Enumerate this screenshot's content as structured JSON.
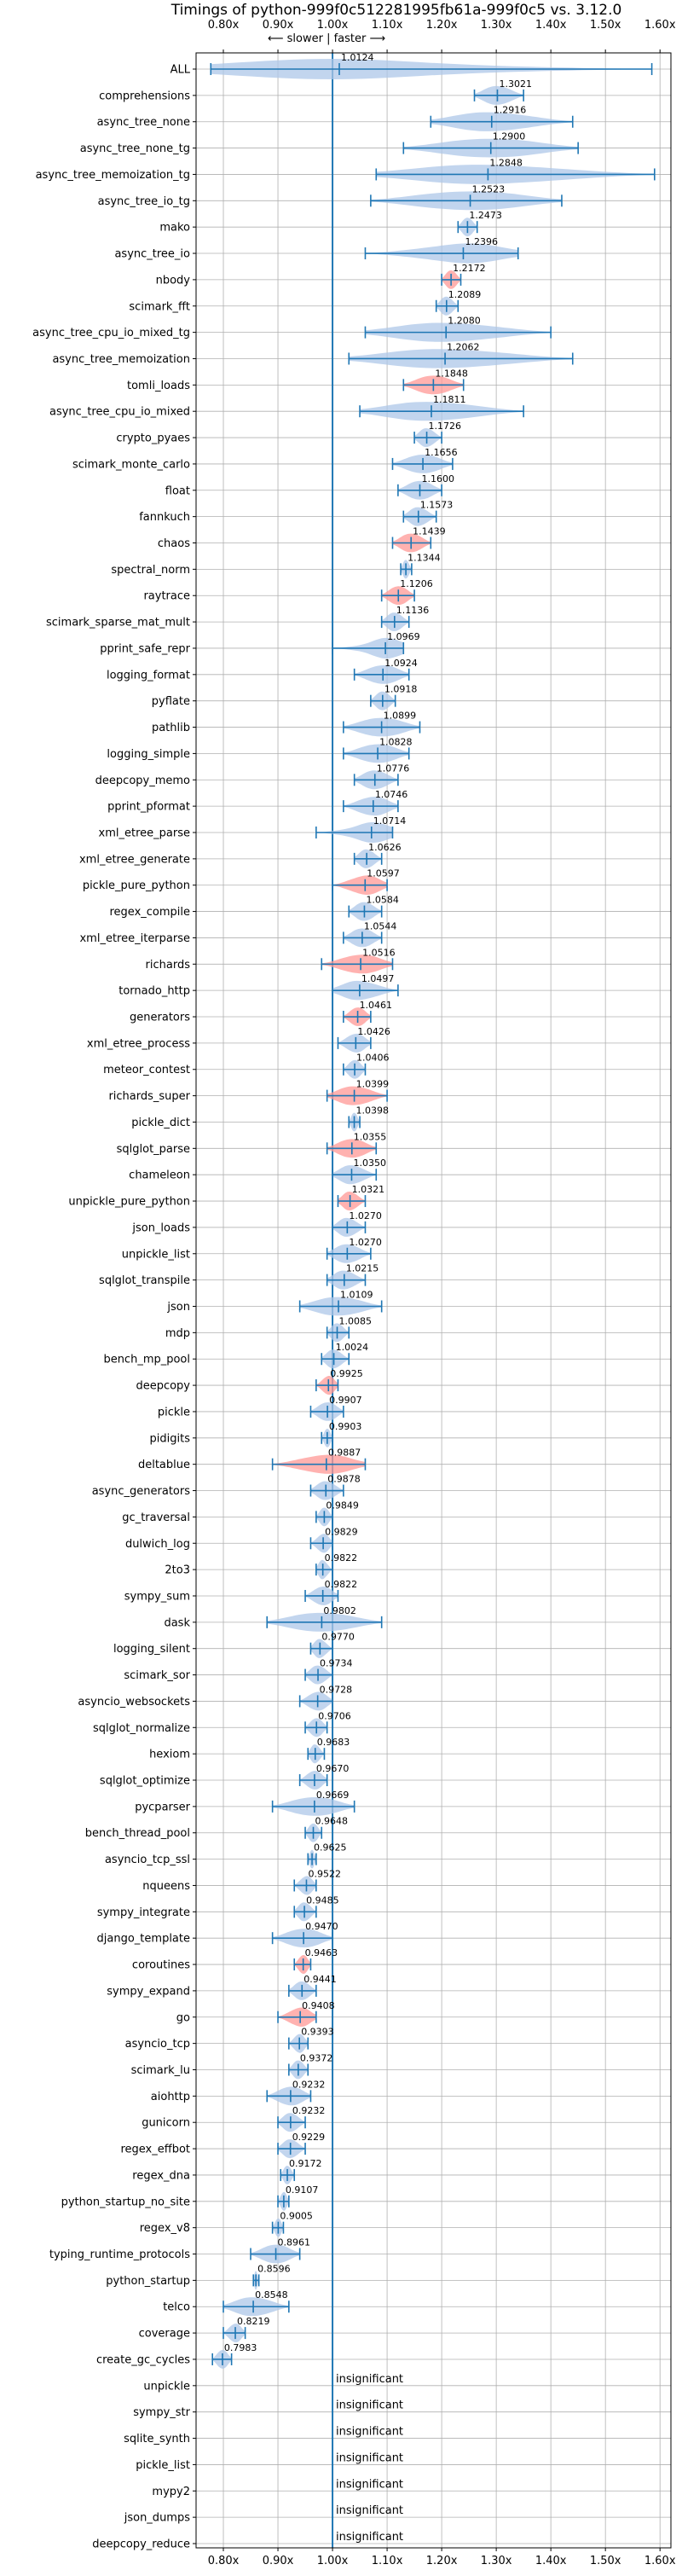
{
  "chart_data": {
    "type": "violin",
    "title": "Timings of python-999f0c512281995fb61a-999f0c5 vs. 3.12.0",
    "direction_label": "⟵ slower | faster ⟶",
    "xlim": [
      0.75,
      1.62
    ],
    "xticks": [
      "0.80x",
      "0.90x",
      "1.00x",
      "1.10x",
      "1.20x",
      "1.30x",
      "1.40x",
      "1.50x",
      "1.60x"
    ],
    "xtick_values": [
      0.8,
      0.9,
      1.0,
      1.1,
      1.2,
      1.3,
      1.4,
      1.5,
      1.6
    ],
    "reference_line": 1.0,
    "insignificant_label": "insignificant",
    "colors": {
      "normal": "#aec7e8",
      "highlight": "#ff9896",
      "line": "#1f77b4",
      "grid": "#b0b0b0"
    },
    "benchmarks": [
      {
        "name": "ALL",
        "value": 1.0124,
        "label": "1.0124",
        "min": 0.777,
        "max": 1.585,
        "color": "normal"
      },
      {
        "name": "comprehensions",
        "value": 1.3021,
        "label": "1.3021",
        "min": 1.26,
        "max": 1.35,
        "color": "normal"
      },
      {
        "name": "async_tree_none",
        "value": 1.2916,
        "label": "1.2916",
        "min": 1.18,
        "max": 1.44,
        "color": "normal"
      },
      {
        "name": "async_tree_none_tg",
        "value": 1.29,
        "label": "1.2900",
        "min": 1.13,
        "max": 1.45,
        "color": "normal"
      },
      {
        "name": "async_tree_memoization_tg",
        "value": 1.2848,
        "label": "1.2848",
        "min": 1.08,
        "max": 1.59,
        "color": "normal"
      },
      {
        "name": "async_tree_io_tg",
        "value": 1.2523,
        "label": "1.2523",
        "min": 1.07,
        "max": 1.42,
        "color": "normal"
      },
      {
        "name": "mako",
        "value": 1.2473,
        "label": "1.2473",
        "min": 1.23,
        "max": 1.265,
        "color": "normal"
      },
      {
        "name": "async_tree_io",
        "value": 1.2396,
        "label": "1.2396",
        "min": 1.06,
        "max": 1.34,
        "color": "normal"
      },
      {
        "name": "nbody",
        "value": 1.2172,
        "label": "1.2172",
        "min": 1.2,
        "max": 1.235,
        "color": "highlight"
      },
      {
        "name": "scimark_fft",
        "value": 1.2089,
        "label": "1.2089",
        "min": 1.19,
        "max": 1.23,
        "color": "normal"
      },
      {
        "name": "async_tree_cpu_io_mixed_tg",
        "value": 1.208,
        "label": "1.2080",
        "min": 1.06,
        "max": 1.4,
        "color": "normal"
      },
      {
        "name": "async_tree_memoization",
        "value": 1.2062,
        "label": "1.2062",
        "min": 1.03,
        "max": 1.44,
        "color": "normal"
      },
      {
        "name": "tomli_loads",
        "value": 1.1848,
        "label": "1.1848",
        "min": 1.13,
        "max": 1.24,
        "color": "highlight"
      },
      {
        "name": "async_tree_cpu_io_mixed",
        "value": 1.1811,
        "label": "1.1811",
        "min": 1.05,
        "max": 1.35,
        "color": "normal"
      },
      {
        "name": "crypto_pyaes",
        "value": 1.1726,
        "label": "1.1726",
        "min": 1.15,
        "max": 1.2,
        "color": "normal"
      },
      {
        "name": "scimark_monte_carlo",
        "value": 1.1656,
        "label": "1.1656",
        "min": 1.11,
        "max": 1.22,
        "color": "normal"
      },
      {
        "name": "float",
        "value": 1.16,
        "label": "1.1600",
        "min": 1.12,
        "max": 1.2,
        "color": "normal"
      },
      {
        "name": "fannkuch",
        "value": 1.1573,
        "label": "1.1573",
        "min": 1.13,
        "max": 1.19,
        "color": "normal"
      },
      {
        "name": "chaos",
        "value": 1.1439,
        "label": "1.1439",
        "min": 1.11,
        "max": 1.18,
        "color": "highlight"
      },
      {
        "name": "spectral_norm",
        "value": 1.1344,
        "label": "1.1344",
        "min": 1.125,
        "max": 1.145,
        "color": "normal"
      },
      {
        "name": "raytrace",
        "value": 1.1206,
        "label": "1.1206",
        "min": 1.09,
        "max": 1.15,
        "color": "highlight"
      },
      {
        "name": "scimark_sparse_mat_mult",
        "value": 1.1136,
        "label": "1.1136",
        "min": 1.09,
        "max": 1.14,
        "color": "normal"
      },
      {
        "name": "pprint_safe_repr",
        "value": 1.0969,
        "label": "1.0969",
        "min": 1.0,
        "max": 1.13,
        "color": "normal"
      },
      {
        "name": "logging_format",
        "value": 1.0924,
        "label": "1.0924",
        "min": 1.04,
        "max": 1.14,
        "color": "normal"
      },
      {
        "name": "pyflate",
        "value": 1.0918,
        "label": "1.0918",
        "min": 1.07,
        "max": 1.115,
        "color": "normal"
      },
      {
        "name": "pathlib",
        "value": 1.0899,
        "label": "1.0899",
        "min": 1.02,
        "max": 1.16,
        "color": "normal"
      },
      {
        "name": "logging_simple",
        "value": 1.0828,
        "label": "1.0828",
        "min": 1.02,
        "max": 1.14,
        "color": "normal"
      },
      {
        "name": "deepcopy_memo",
        "value": 1.0776,
        "label": "1.0776",
        "min": 1.04,
        "max": 1.12,
        "color": "normal"
      },
      {
        "name": "pprint_pformat",
        "value": 1.0746,
        "label": "1.0746",
        "min": 1.02,
        "max": 1.12,
        "color": "normal"
      },
      {
        "name": "xml_etree_parse",
        "value": 1.0714,
        "label": "1.0714",
        "min": 0.97,
        "max": 1.11,
        "color": "normal"
      },
      {
        "name": "xml_etree_generate",
        "value": 1.0626,
        "label": "1.0626",
        "min": 1.04,
        "max": 1.09,
        "color": "normal"
      },
      {
        "name": "pickle_pure_python",
        "value": 1.0597,
        "label": "1.0597",
        "min": 1.0,
        "max": 1.1,
        "color": "highlight"
      },
      {
        "name": "regex_compile",
        "value": 1.0584,
        "label": "1.0584",
        "min": 1.03,
        "max": 1.09,
        "color": "normal"
      },
      {
        "name": "xml_etree_iterparse",
        "value": 1.0544,
        "label": "1.0544",
        "min": 1.02,
        "max": 1.09,
        "color": "normal"
      },
      {
        "name": "richards",
        "value": 1.0516,
        "label": "1.0516",
        "min": 0.98,
        "max": 1.11,
        "color": "highlight"
      },
      {
        "name": "tornado_http",
        "value": 1.0497,
        "label": "1.0497",
        "min": 1.0,
        "max": 1.12,
        "color": "normal"
      },
      {
        "name": "generators",
        "value": 1.0461,
        "label": "1.0461",
        "min": 1.02,
        "max": 1.07,
        "color": "highlight"
      },
      {
        "name": "xml_etree_process",
        "value": 1.0426,
        "label": "1.0426",
        "min": 1.01,
        "max": 1.07,
        "color": "normal"
      },
      {
        "name": "meteor_contest",
        "value": 1.0406,
        "label": "1.0406",
        "min": 1.02,
        "max": 1.06,
        "color": "normal"
      },
      {
        "name": "richards_super",
        "value": 1.0399,
        "label": "1.0399",
        "min": 0.99,
        "max": 1.1,
        "color": "highlight"
      },
      {
        "name": "pickle_dict",
        "value": 1.0398,
        "label": "1.0398",
        "min": 1.03,
        "max": 1.05,
        "color": "normal"
      },
      {
        "name": "sqlglot_parse",
        "value": 1.0355,
        "label": "1.0355",
        "min": 0.99,
        "max": 1.08,
        "color": "highlight"
      },
      {
        "name": "chameleon",
        "value": 1.035,
        "label": "1.0350",
        "min": 1.0,
        "max": 1.08,
        "color": "normal"
      },
      {
        "name": "unpickle_pure_python",
        "value": 1.0321,
        "label": "1.0321",
        "min": 1.01,
        "max": 1.06,
        "color": "highlight"
      },
      {
        "name": "json_loads",
        "value": 1.027,
        "label": "1.0270",
        "min": 1.0,
        "max": 1.06,
        "color": "normal"
      },
      {
        "name": "unpickle_list",
        "value": 1.027,
        "label": "1.0270",
        "min": 0.99,
        "max": 1.07,
        "color": "normal"
      },
      {
        "name": "sqlglot_transpile",
        "value": 1.0215,
        "label": "1.0215",
        "min": 0.99,
        "max": 1.06,
        "color": "normal"
      },
      {
        "name": "json",
        "value": 1.0109,
        "label": "1.0109",
        "min": 0.94,
        "max": 1.09,
        "color": "normal"
      },
      {
        "name": "mdp",
        "value": 1.0085,
        "label": "1.0085",
        "min": 0.99,
        "max": 1.03,
        "color": "normal"
      },
      {
        "name": "bench_mp_pool",
        "value": 1.0024,
        "label": "1.0024",
        "min": 0.98,
        "max": 1.03,
        "color": "normal"
      },
      {
        "name": "deepcopy",
        "value": 0.9925,
        "label": "0.9925",
        "min": 0.97,
        "max": 1.01,
        "color": "highlight"
      },
      {
        "name": "pickle",
        "value": 0.9907,
        "label": "0.9907",
        "min": 0.96,
        "max": 1.02,
        "color": "normal"
      },
      {
        "name": "pidigits",
        "value": 0.9903,
        "label": "0.9903",
        "min": 0.98,
        "max": 1.0,
        "color": "normal"
      },
      {
        "name": "deltablue",
        "value": 0.9887,
        "label": "0.9887",
        "min": 0.89,
        "max": 1.06,
        "color": "highlight"
      },
      {
        "name": "async_generators",
        "value": 0.9878,
        "label": "0.9878",
        "min": 0.96,
        "max": 1.02,
        "color": "normal"
      },
      {
        "name": "gc_traversal",
        "value": 0.9849,
        "label": "0.9849",
        "min": 0.97,
        "max": 1.0,
        "color": "normal"
      },
      {
        "name": "dulwich_log",
        "value": 0.9829,
        "label": "0.9829",
        "min": 0.96,
        "max": 1.0,
        "color": "normal"
      },
      {
        "name": "2to3",
        "value": 0.9822,
        "label": "0.9822",
        "min": 0.97,
        "max": 1.0,
        "color": "normal"
      },
      {
        "name": "sympy_sum",
        "value": 0.9822,
        "label": "0.9822",
        "min": 0.95,
        "max": 1.01,
        "color": "normal"
      },
      {
        "name": "dask",
        "value": 0.9802,
        "label": "0.9802",
        "min": 0.88,
        "max": 1.09,
        "color": "normal"
      },
      {
        "name": "logging_silent",
        "value": 0.977,
        "label": "0.9770",
        "min": 0.96,
        "max": 1.0,
        "color": "normal"
      },
      {
        "name": "scimark_sor",
        "value": 0.9734,
        "label": "0.9734",
        "min": 0.95,
        "max": 1.0,
        "color": "normal"
      },
      {
        "name": "asyncio_websockets",
        "value": 0.9728,
        "label": "0.9728",
        "min": 0.94,
        "max": 1.0,
        "color": "normal"
      },
      {
        "name": "sqlglot_normalize",
        "value": 0.9706,
        "label": "0.9706",
        "min": 0.95,
        "max": 0.99,
        "color": "normal"
      },
      {
        "name": "hexiom",
        "value": 0.9683,
        "label": "0.9683",
        "min": 0.955,
        "max": 0.985,
        "color": "normal"
      },
      {
        "name": "sqlglot_optimize",
        "value": 0.967,
        "label": "0.9670",
        "min": 0.94,
        "max": 0.99,
        "color": "normal"
      },
      {
        "name": "pycparser",
        "value": 0.9669,
        "label": "0.9669",
        "min": 0.89,
        "max": 1.04,
        "color": "normal"
      },
      {
        "name": "bench_thread_pool",
        "value": 0.9648,
        "label": "0.9648",
        "min": 0.95,
        "max": 0.98,
        "color": "normal"
      },
      {
        "name": "asyncio_tcp_ssl",
        "value": 0.9625,
        "label": "0.9625",
        "min": 0.955,
        "max": 0.97,
        "color": "normal"
      },
      {
        "name": "nqueens",
        "value": 0.9522,
        "label": "0.9522",
        "min": 0.93,
        "max": 0.97,
        "color": "normal"
      },
      {
        "name": "sympy_integrate",
        "value": 0.9485,
        "label": "0.9485",
        "min": 0.93,
        "max": 0.97,
        "color": "normal"
      },
      {
        "name": "django_template",
        "value": 0.947,
        "label": "0.9470",
        "min": 0.89,
        "max": 1.0,
        "color": "normal"
      },
      {
        "name": "coroutines",
        "value": 0.9463,
        "label": "0.9463",
        "min": 0.93,
        "max": 0.96,
        "color": "highlight"
      },
      {
        "name": "sympy_expand",
        "value": 0.9441,
        "label": "0.9441",
        "min": 0.92,
        "max": 0.97,
        "color": "normal"
      },
      {
        "name": "go",
        "value": 0.9408,
        "label": "0.9408",
        "min": 0.9,
        "max": 0.97,
        "color": "highlight"
      },
      {
        "name": "asyncio_tcp",
        "value": 0.9393,
        "label": "0.9393",
        "min": 0.92,
        "max": 0.955,
        "color": "normal"
      },
      {
        "name": "scimark_lu",
        "value": 0.9372,
        "label": "0.9372",
        "min": 0.92,
        "max": 0.955,
        "color": "normal"
      },
      {
        "name": "aiohttp",
        "value": 0.9232,
        "label": "0.9232",
        "min": 0.88,
        "max": 0.96,
        "color": "normal"
      },
      {
        "name": "gunicorn",
        "value": 0.9232,
        "label": "0.9232",
        "min": 0.9,
        "max": 0.95,
        "color": "normal"
      },
      {
        "name": "regex_effbot",
        "value": 0.9229,
        "label": "0.9229",
        "min": 0.9,
        "max": 0.95,
        "color": "normal"
      },
      {
        "name": "regex_dna",
        "value": 0.9172,
        "label": "0.9172",
        "min": 0.905,
        "max": 0.93,
        "color": "normal"
      },
      {
        "name": "python_startup_no_site",
        "value": 0.9107,
        "label": "0.9107",
        "min": 0.9,
        "max": 0.92,
        "color": "normal"
      },
      {
        "name": "regex_v8",
        "value": 0.9005,
        "label": "0.9005",
        "min": 0.89,
        "max": 0.91,
        "color": "normal"
      },
      {
        "name": "typing_runtime_protocols",
        "value": 0.8961,
        "label": "0.8961",
        "min": 0.85,
        "max": 0.94,
        "color": "normal"
      },
      {
        "name": "python_startup",
        "value": 0.8596,
        "label": "0.8596",
        "min": 0.855,
        "max": 0.865,
        "color": "normal"
      },
      {
        "name": "telco",
        "value": 0.8548,
        "label": "0.8548",
        "min": 0.8,
        "max": 0.92,
        "color": "normal"
      },
      {
        "name": "coverage",
        "value": 0.8219,
        "label": "0.8219",
        "min": 0.8,
        "max": 0.84,
        "color": "normal"
      },
      {
        "name": "create_gc_cycles",
        "value": 0.7983,
        "label": "0.7983",
        "min": 0.78,
        "max": 0.815,
        "color": "normal"
      },
      {
        "name": "unpickle",
        "insignificant": true
      },
      {
        "name": "sympy_str",
        "insignificant": true
      },
      {
        "name": "sqlite_synth",
        "insignificant": true
      },
      {
        "name": "pickle_list",
        "insignificant": true
      },
      {
        "name": "mypy2",
        "insignificant": true
      },
      {
        "name": "json_dumps",
        "insignificant": true
      },
      {
        "name": "deepcopy_reduce",
        "insignificant": true
      }
    ]
  }
}
